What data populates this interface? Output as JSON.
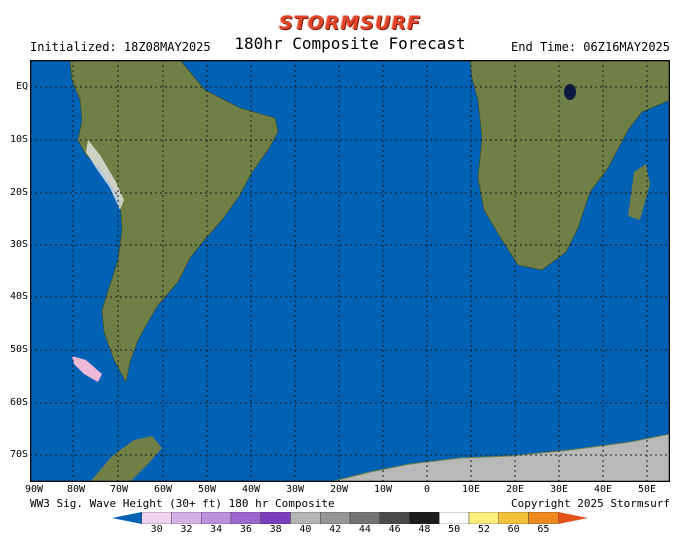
{
  "brand": "STORMSURF",
  "header": {
    "initialized": "Initialized: 18Z08MAY2025",
    "title": "180hr Composite Forecast",
    "end_time": "End Time: 06Z16MAY2025"
  },
  "lat_labels": [
    "EQ",
    "10S",
    "20S",
    "30S",
    "40S",
    "50S",
    "60S",
    "70S"
  ],
  "lon_labels": [
    "90W",
    "80W",
    "70W",
    "60W",
    "50W",
    "40W",
    "30W",
    "20W",
    "10W",
    "0",
    "10E",
    "20E",
    "30E",
    "40E",
    "50E"
  ],
  "footer": {
    "left": "WW3 Sig. Wave Height (30+ ft) 180 hr Composite",
    "right": "Copyright 2025 Stormsurf"
  },
  "colorbar": {
    "labels": [
      "30",
      "32",
      "34",
      "36",
      "38",
      "40",
      "42",
      "44",
      "46",
      "48",
      "50",
      "52",
      "60",
      "65"
    ],
    "colors": [
      "#efd2ef",
      "#d5b2e6",
      "#bb90dc",
      "#9c67cf",
      "#7a3dbb",
      "#b4b4b4",
      "#969696",
      "#737373",
      "#4a4a4a",
      "#1c1c1c",
      "#ffffff",
      "#f9ef7a",
      "#f3c23a",
      "#ec8a1e",
      "#e2541c"
    ]
  },
  "colors": {
    "ocean": "#0061b5",
    "land": "#6f7f45",
    "ice": "#b8b8b8"
  }
}
